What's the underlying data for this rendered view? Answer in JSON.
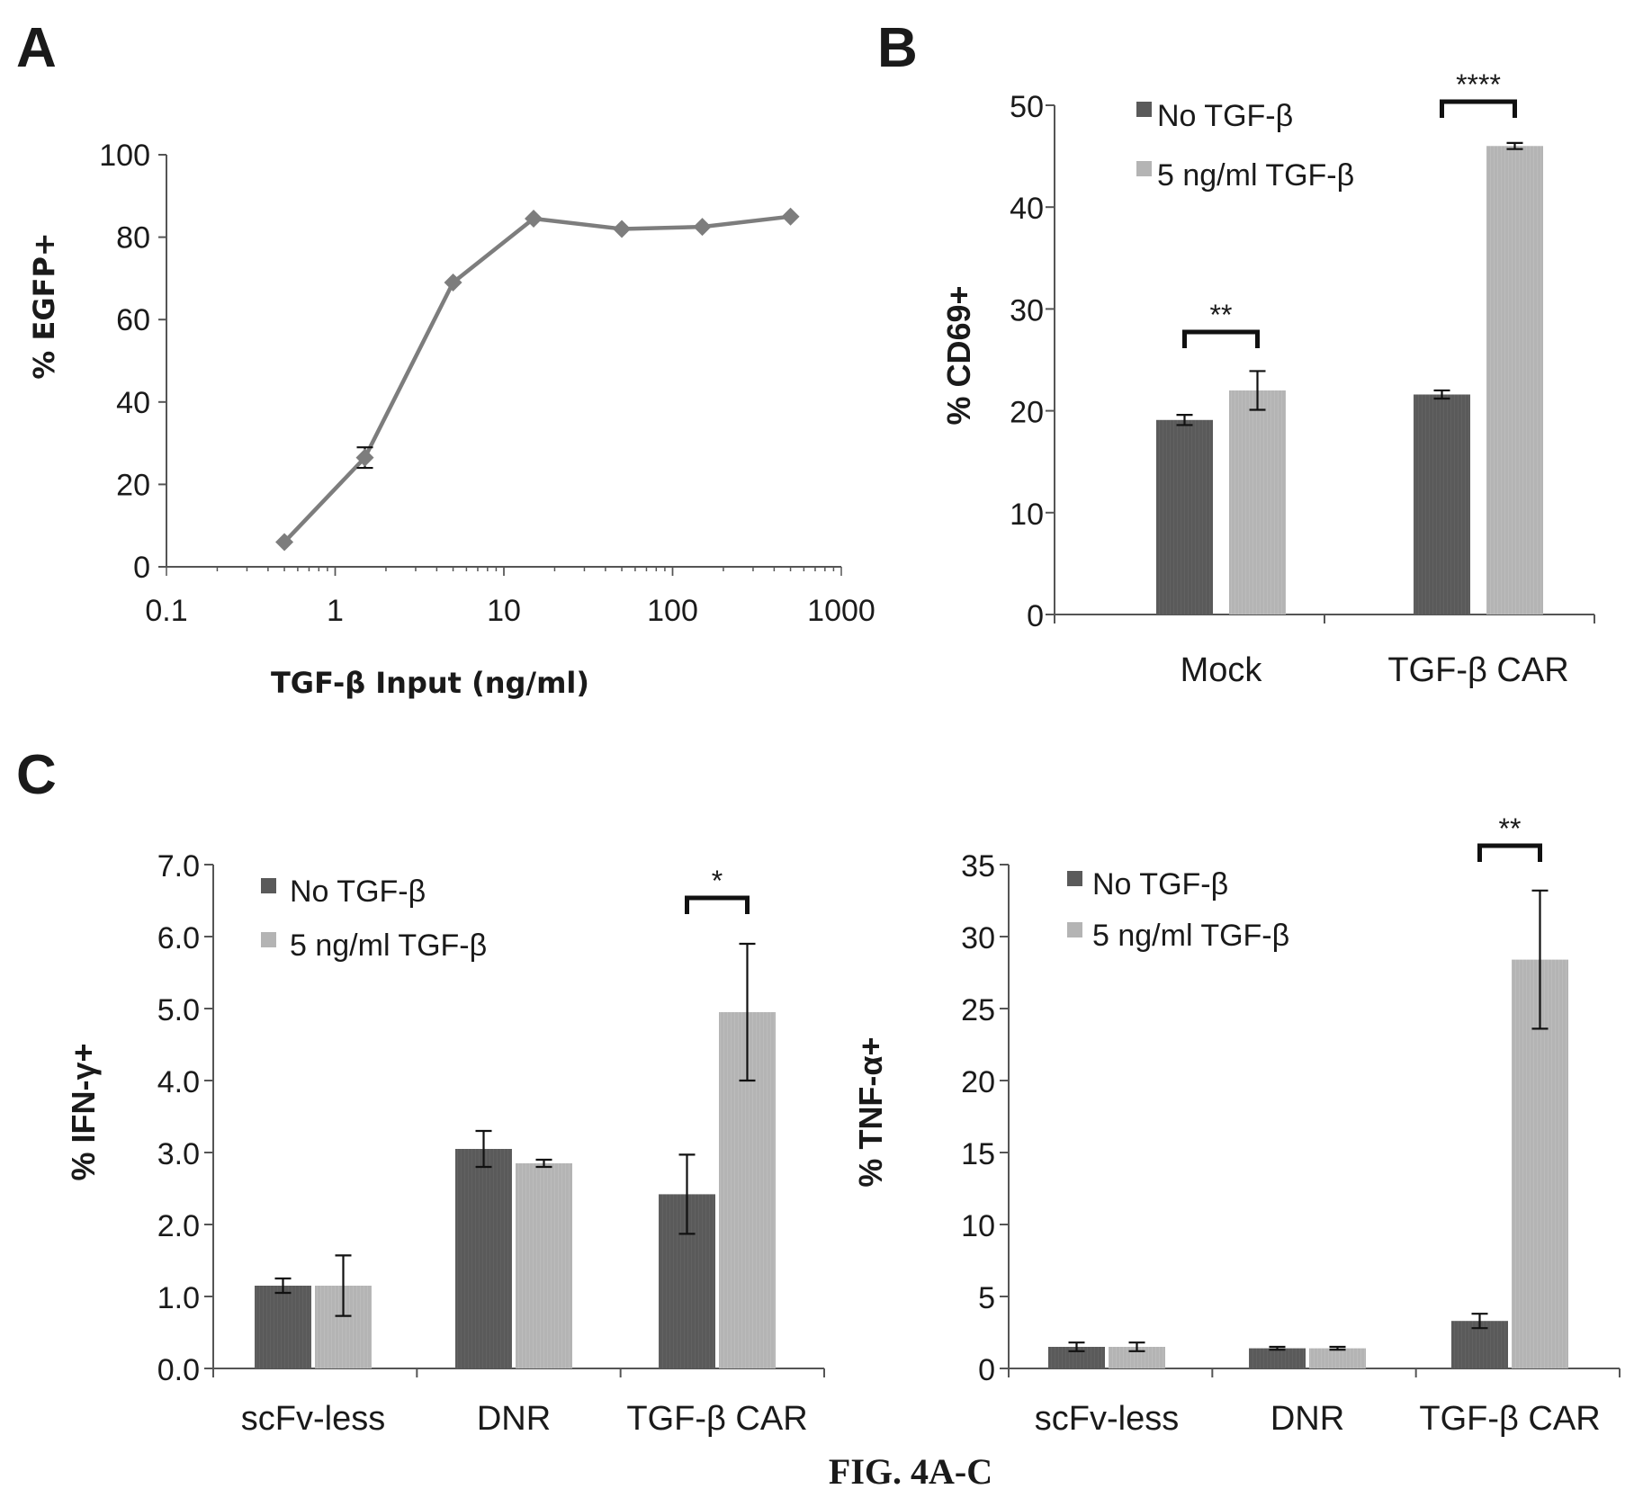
{
  "figure": {
    "caption": "FIG. 4A-C"
  },
  "colors": {
    "no_tgf": "#5a5a5a",
    "tgf_5": "#b4b4b4",
    "line": "#7d7d7d",
    "axis": "#555555"
  },
  "chart_data": [
    {
      "panel": "A",
      "type": "line",
      "xscale": "log",
      "xlim": [
        0.1,
        1000
      ],
      "xticks": [
        "0.1",
        "1",
        "10",
        "100",
        "1000"
      ],
      "ylim": [
        0,
        100
      ],
      "yticks": [
        "0",
        "20",
        "40",
        "60",
        "80",
        "100"
      ],
      "xlabel": "TGF-β Input (ng/ml)",
      "ylabel": "% EGFP+",
      "x": [
        0.5,
        1.5,
        5,
        15,
        50,
        150,
        500
      ],
      "y": [
        6,
        26.5,
        69,
        84.5,
        82,
        82.5,
        85
      ],
      "err": [
        0.5,
        2.5,
        0.8,
        0.6,
        0.5,
        0.5,
        0.5
      ]
    },
    {
      "panel": "B",
      "type": "bar",
      "categories": [
        "Mock",
        "TGF-β CAR"
      ],
      "ylim": [
        0,
        50
      ],
      "yticks": [
        "0",
        "10",
        "20",
        "30",
        "40",
        "50"
      ],
      "ylabel": "% CD69+",
      "legend": [
        "No TGF-β",
        "5 ng/ml TGF-β"
      ],
      "legend_position": "top-left",
      "series": [
        {
          "name": "No TGF-β",
          "values": [
            19.1,
            21.6
          ],
          "err": [
            0.5,
            0.4
          ]
        },
        {
          "name": "5 ng/ml TGF-β",
          "values": [
            22.0,
            46.0
          ],
          "err": [
            1.9,
            0.3
          ]
        }
      ],
      "significance": [
        "**",
        "****"
      ]
    },
    {
      "panel": "C",
      "type": "bar",
      "categories": [
        "scFv-less",
        "DNR",
        "TGF-β CAR"
      ],
      "ylim": [
        0,
        7
      ],
      "yticks": [
        "0.0",
        "1.0",
        "2.0",
        "3.0",
        "4.0",
        "5.0",
        "6.0",
        "7.0"
      ],
      "ylabel": "% IFN-γ+",
      "legend": [
        "No TGF-β",
        "5 ng/ml TGF-β"
      ],
      "legend_position": "top-left",
      "series": [
        {
          "name": "No TGF-β",
          "values": [
            1.15,
            3.05,
            2.42
          ],
          "err": [
            0.1,
            0.25,
            0.55
          ]
        },
        {
          "name": "5 ng/ml TGF-β",
          "values": [
            1.15,
            2.85,
            4.95
          ],
          "err": [
            0.42,
            0.05,
            0.95
          ]
        }
      ],
      "significance": [
        "",
        "",
        "*"
      ]
    },
    {
      "panel": "",
      "type": "bar",
      "categories": [
        "scFv-less",
        "DNR",
        "TGF-β CAR"
      ],
      "ylim": [
        0,
        35
      ],
      "yticks": [
        "0",
        "5",
        "10",
        "15",
        "20",
        "25",
        "30",
        "35"
      ],
      "ylabel": "% TNF-α+",
      "legend": [
        "No TGF-β",
        "5 ng/ml TGF-β"
      ],
      "legend_position": "top-left",
      "series": [
        {
          "name": "No TGF-β",
          "values": [
            1.5,
            1.4,
            3.3
          ],
          "err": [
            0.3,
            0.1,
            0.5
          ]
        },
        {
          "name": "5 ng/ml TGF-β",
          "values": [
            1.5,
            1.4,
            28.4
          ],
          "err": [
            0.3,
            0.1,
            4.8
          ]
        }
      ],
      "significance": [
        "",
        "",
        "**"
      ]
    }
  ]
}
